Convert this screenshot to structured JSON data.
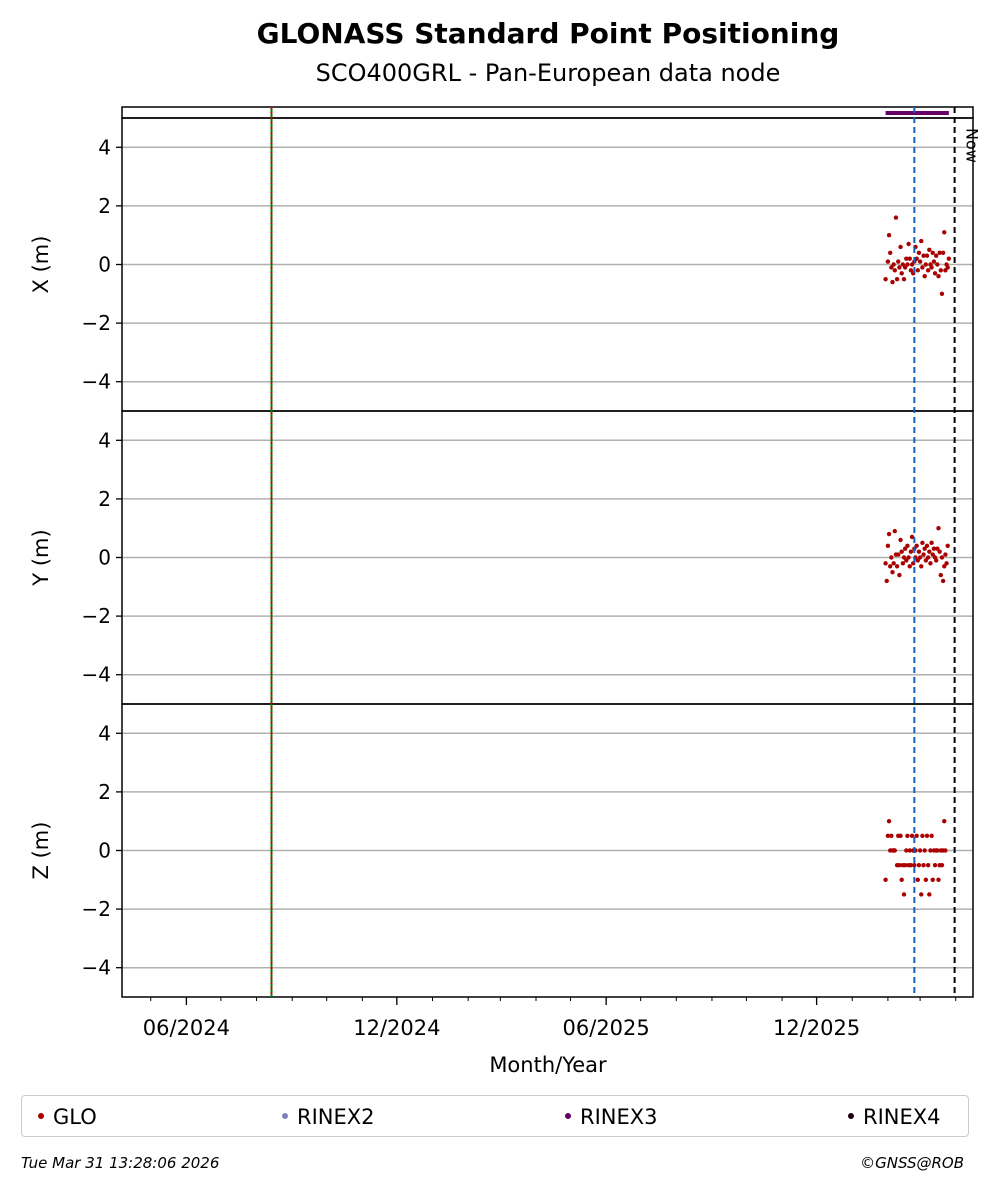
{
  "chart_data": {
    "type": "scatter",
    "title": "GLONASS Standard Point Positioning",
    "subtitle": "SCO400GRL - Pan-European data node",
    "xlabel": "Month/Year",
    "x_range": [
      "2024-04-06",
      "2026-04-16"
    ],
    "x_ticks": [
      {
        "date": "2024-06-01",
        "label": "06/2024"
      },
      {
        "date": "2024-12-01",
        "label": "12/2024"
      },
      {
        "date": "2025-06-01",
        "label": "06/2025"
      },
      {
        "date": "2025-12-01",
        "label": "12/2025"
      }
    ],
    "y_ticks": [
      -4,
      -2,
      0,
      2,
      4
    ],
    "ylim": [
      -5,
      5
    ],
    "grid": true,
    "vertical_lines": [
      {
        "date": "2024-08-14",
        "style": "solid",
        "color": "#008000",
        "label": ""
      },
      {
        "date": "2024-08-14",
        "style": "dotted",
        "color": "#cc0000",
        "label": ""
      },
      {
        "date": "2026-02-24",
        "style": "dashed",
        "color": "#1060c0",
        "label": ""
      },
      {
        "date": "2026-03-31",
        "style": "dashed",
        "color": "#000000",
        "label": "Now"
      }
    ],
    "rinex_bar": {
      "series": "RINEX3",
      "start": "2026-01-30",
      "end": "2026-03-26",
      "color": "#660066"
    },
    "panels": [
      {
        "ylabel": "X (m)",
        "series": [
          {
            "name": "GLO",
            "color": "#aa0000",
            "points": [
              [
                "2026-01-30",
                -0.5
              ],
              [
                "2026-02-01",
                0.1
              ],
              [
                "2026-02-02",
                1.0
              ],
              [
                "2026-02-03",
                0.4
              ],
              [
                "2026-02-04",
                -0.1
              ],
              [
                "2026-02-05",
                -0.6
              ],
              [
                "2026-02-06",
                0.0
              ],
              [
                "2026-02-07",
                -0.2
              ],
              [
                "2026-02-08",
                1.6
              ],
              [
                "2026-02-09",
                -0.5
              ],
              [
                "2026-02-10",
                0.1
              ],
              [
                "2026-02-11",
                -0.1
              ],
              [
                "2026-02-12",
                0.6
              ],
              [
                "2026-02-13",
                -0.3
              ],
              [
                "2026-02-14",
                0.0
              ],
              [
                "2026-02-15",
                -0.5
              ],
              [
                "2026-02-16",
                -0.1
              ],
              [
                "2026-02-17",
                0.2
              ],
              [
                "2026-02-18",
                0.0
              ],
              [
                "2026-02-19",
                0.7
              ],
              [
                "2026-02-20",
                0.2
              ],
              [
                "2026-02-21",
                -0.2
              ],
              [
                "2026-02-22",
                0.0
              ],
              [
                "2026-02-23",
                -0.3
              ],
              [
                "2026-02-24",
                0.1
              ],
              [
                "2026-02-25",
                0.6
              ],
              [
                "2026-02-26",
                0.2
              ],
              [
                "2026-02-27",
                -0.2
              ],
              [
                "2026-02-28",
                0.4
              ],
              [
                "2026-03-01",
                0.1
              ],
              [
                "2026-03-02",
                0.8
              ],
              [
                "2026-03-03",
                -0.1
              ],
              [
                "2026-03-04",
                0.3
              ],
              [
                "2026-03-05",
                -0.4
              ],
              [
                "2026-03-06",
                0.0
              ],
              [
                "2026-03-07",
                0.3
              ],
              [
                "2026-03-08",
                -0.2
              ],
              [
                "2026-03-09",
                0.5
              ],
              [
                "2026-03-10",
                0.0
              ],
              [
                "2026-03-11",
                -0.1
              ],
              [
                "2026-03-12",
                0.4
              ],
              [
                "2026-03-13",
                0.1
              ],
              [
                "2026-03-14",
                -0.3
              ],
              [
                "2026-03-15",
                0.3
              ],
              [
                "2026-03-16",
                0.0
              ],
              [
                "2026-03-17",
                -0.4
              ],
              [
                "2026-03-18",
                0.4
              ],
              [
                "2026-03-19",
                -0.2
              ],
              [
                "2026-03-20",
                -1.0
              ],
              [
                "2026-03-21",
                0.4
              ],
              [
                "2026-03-22",
                1.1
              ],
              [
                "2026-03-23",
                -0.2
              ],
              [
                "2026-03-24",
                0.0
              ],
              [
                "2026-03-25",
                -0.1
              ],
              [
                "2026-03-26",
                0.2
              ]
            ]
          }
        ]
      },
      {
        "ylabel": "Y (m)",
        "series": [
          {
            "name": "GLO",
            "color": "#aa0000",
            "points": [
              [
                "2026-01-30",
                -0.2
              ],
              [
                "2026-01-31",
                -0.8
              ],
              [
                "2026-02-01",
                0.4
              ],
              [
                "2026-02-02",
                0.8
              ],
              [
                "2026-02-03",
                -0.3
              ],
              [
                "2026-02-04",
                0.0
              ],
              [
                "2026-02-05",
                -0.5
              ],
              [
                "2026-02-06",
                -0.2
              ],
              [
                "2026-02-07",
                0.9
              ],
              [
                "2026-02-08",
                0.1
              ],
              [
                "2026-02-09",
                -0.3
              ],
              [
                "2026-02-10",
                0.1
              ],
              [
                "2026-02-11",
                -0.6
              ],
              [
                "2026-02-12",
                0.6
              ],
              [
                "2026-02-13",
                0.2
              ],
              [
                "2026-02-14",
                -0.2
              ],
              [
                "2026-02-15",
                0.0
              ],
              [
                "2026-02-16",
                0.3
              ],
              [
                "2026-02-17",
                -0.1
              ],
              [
                "2026-02-18",
                0.4
              ],
              [
                "2026-02-19",
                0.0
              ],
              [
                "2026-02-20",
                -0.3
              ],
              [
                "2026-02-21",
                0.2
              ],
              [
                "2026-02-22",
                0.7
              ],
              [
                "2026-02-23",
                -0.2
              ],
              [
                "2026-02-24",
                0.3
              ],
              [
                "2026-02-25",
                0.0
              ],
              [
                "2026-02-26",
                0.4
              ],
              [
                "2026-02-27",
                -0.1
              ],
              [
                "2026-02-28",
                0.2
              ],
              [
                "2026-03-01",
                0.0
              ],
              [
                "2026-03-02",
                -0.3
              ],
              [
                "2026-03-03",
                0.5
              ],
              [
                "2026-03-04",
                0.1
              ],
              [
                "2026-03-05",
                0.3
              ],
              [
                "2026-03-06",
                -0.1
              ],
              [
                "2026-03-07",
                0.4
              ],
              [
                "2026-03-08",
                0.0
              ],
              [
                "2026-03-09",
                0.2
              ],
              [
                "2026-03-10",
                -0.2
              ],
              [
                "2026-03-11",
                0.5
              ],
              [
                "2026-03-12",
                0.1
              ],
              [
                "2026-03-13",
                0.3
              ],
              [
                "2026-03-14",
                0.0
              ],
              [
                "2026-03-15",
                -0.1
              ],
              [
                "2026-03-16",
                0.3
              ],
              [
                "2026-03-17",
                1.0
              ],
              [
                "2026-03-18",
                0.2
              ],
              [
                "2026-03-19",
                -0.6
              ],
              [
                "2026-03-20",
                0.0
              ],
              [
                "2026-03-21",
                -0.8
              ],
              [
                "2026-03-22",
                -0.3
              ],
              [
                "2026-03-23",
                0.1
              ],
              [
                "2026-03-24",
                -0.2
              ],
              [
                "2026-03-25",
                0.4
              ]
            ]
          }
        ]
      },
      {
        "ylabel": "Z (m)",
        "series": [
          {
            "name": "GLO",
            "color": "#aa0000",
            "points": [
              [
                "2026-01-30",
                -1.0
              ],
              [
                "2026-02-01",
                0.5
              ],
              [
                "2026-02-02",
                1.0
              ],
              [
                "2026-02-03",
                0.0
              ],
              [
                "2026-02-04",
                0.5
              ],
              [
                "2026-02-05",
                0.0
              ],
              [
                "2026-02-06",
                0.0
              ],
              [
                "2026-02-07",
                0.0
              ],
              [
                "2026-02-09",
                -0.5
              ],
              [
                "2026-02-10",
                0.5
              ],
              [
                "2026-02-11",
                -0.5
              ],
              [
                "2026-02-12",
                0.5
              ],
              [
                "2026-02-13",
                -1.0
              ],
              [
                "2026-02-14",
                -0.5
              ],
              [
                "2026-02-15",
                -1.5
              ],
              [
                "2026-02-16",
                -0.5
              ],
              [
                "2026-02-17",
                0.0
              ],
              [
                "2026-02-18",
                0.5
              ],
              [
                "2026-02-19",
                -0.5
              ],
              [
                "2026-02-20",
                0.0
              ],
              [
                "2026-02-21",
                -0.5
              ],
              [
                "2026-02-22",
                0.5
              ],
              [
                "2026-02-23",
                0.0
              ],
              [
                "2026-02-24",
                -0.5
              ],
              [
                "2026-02-25",
                0.0
              ],
              [
                "2026-02-26",
                0.5
              ],
              [
                "2026-02-27",
                -1.0
              ],
              [
                "2026-02-28",
                -0.5
              ],
              [
                "2026-03-01",
                0.0
              ],
              [
                "2026-03-02",
                -1.5
              ],
              [
                "2026-03-03",
                0.5
              ],
              [
                "2026-03-04",
                -0.5
              ],
              [
                "2026-03-05",
                0.0
              ],
              [
                "2026-03-06",
                -1.0
              ],
              [
                "2026-03-07",
                0.5
              ],
              [
                "2026-03-08",
                -0.5
              ],
              [
                "2026-03-09",
                -1.5
              ],
              [
                "2026-03-10",
                0.0
              ],
              [
                "2026-03-11",
                0.5
              ],
              [
                "2026-03-12",
                -1.0
              ],
              [
                "2026-03-13",
                0.0
              ],
              [
                "2026-03-14",
                -0.5
              ],
              [
                "2026-03-15",
                0.0
              ],
              [
                "2026-03-16",
                0.0
              ],
              [
                "2026-03-17",
                -1.0
              ],
              [
                "2026-03-18",
                -0.5
              ],
              [
                "2026-03-19",
                0.0
              ],
              [
                "2026-03-20",
                -0.5
              ],
              [
                "2026-03-21",
                0.0
              ],
              [
                "2026-03-22",
                1.0
              ],
              [
                "2026-03-23",
                0.0
              ]
            ]
          }
        ]
      }
    ],
    "legend": {
      "placement": "bottom",
      "items": [
        {
          "label": "GLO",
          "color": "#aa0000"
        },
        {
          "label": "RINEX2",
          "color": "#8080b8"
        },
        {
          "label": "RINEX3",
          "color": "#660066"
        },
        {
          "label": "RINEX4",
          "color": "#1a0010"
        }
      ]
    }
  },
  "footer": {
    "timestamp": "Tue Mar 31 13:28:06 2026",
    "credit": "©GNSS@ROB"
  }
}
